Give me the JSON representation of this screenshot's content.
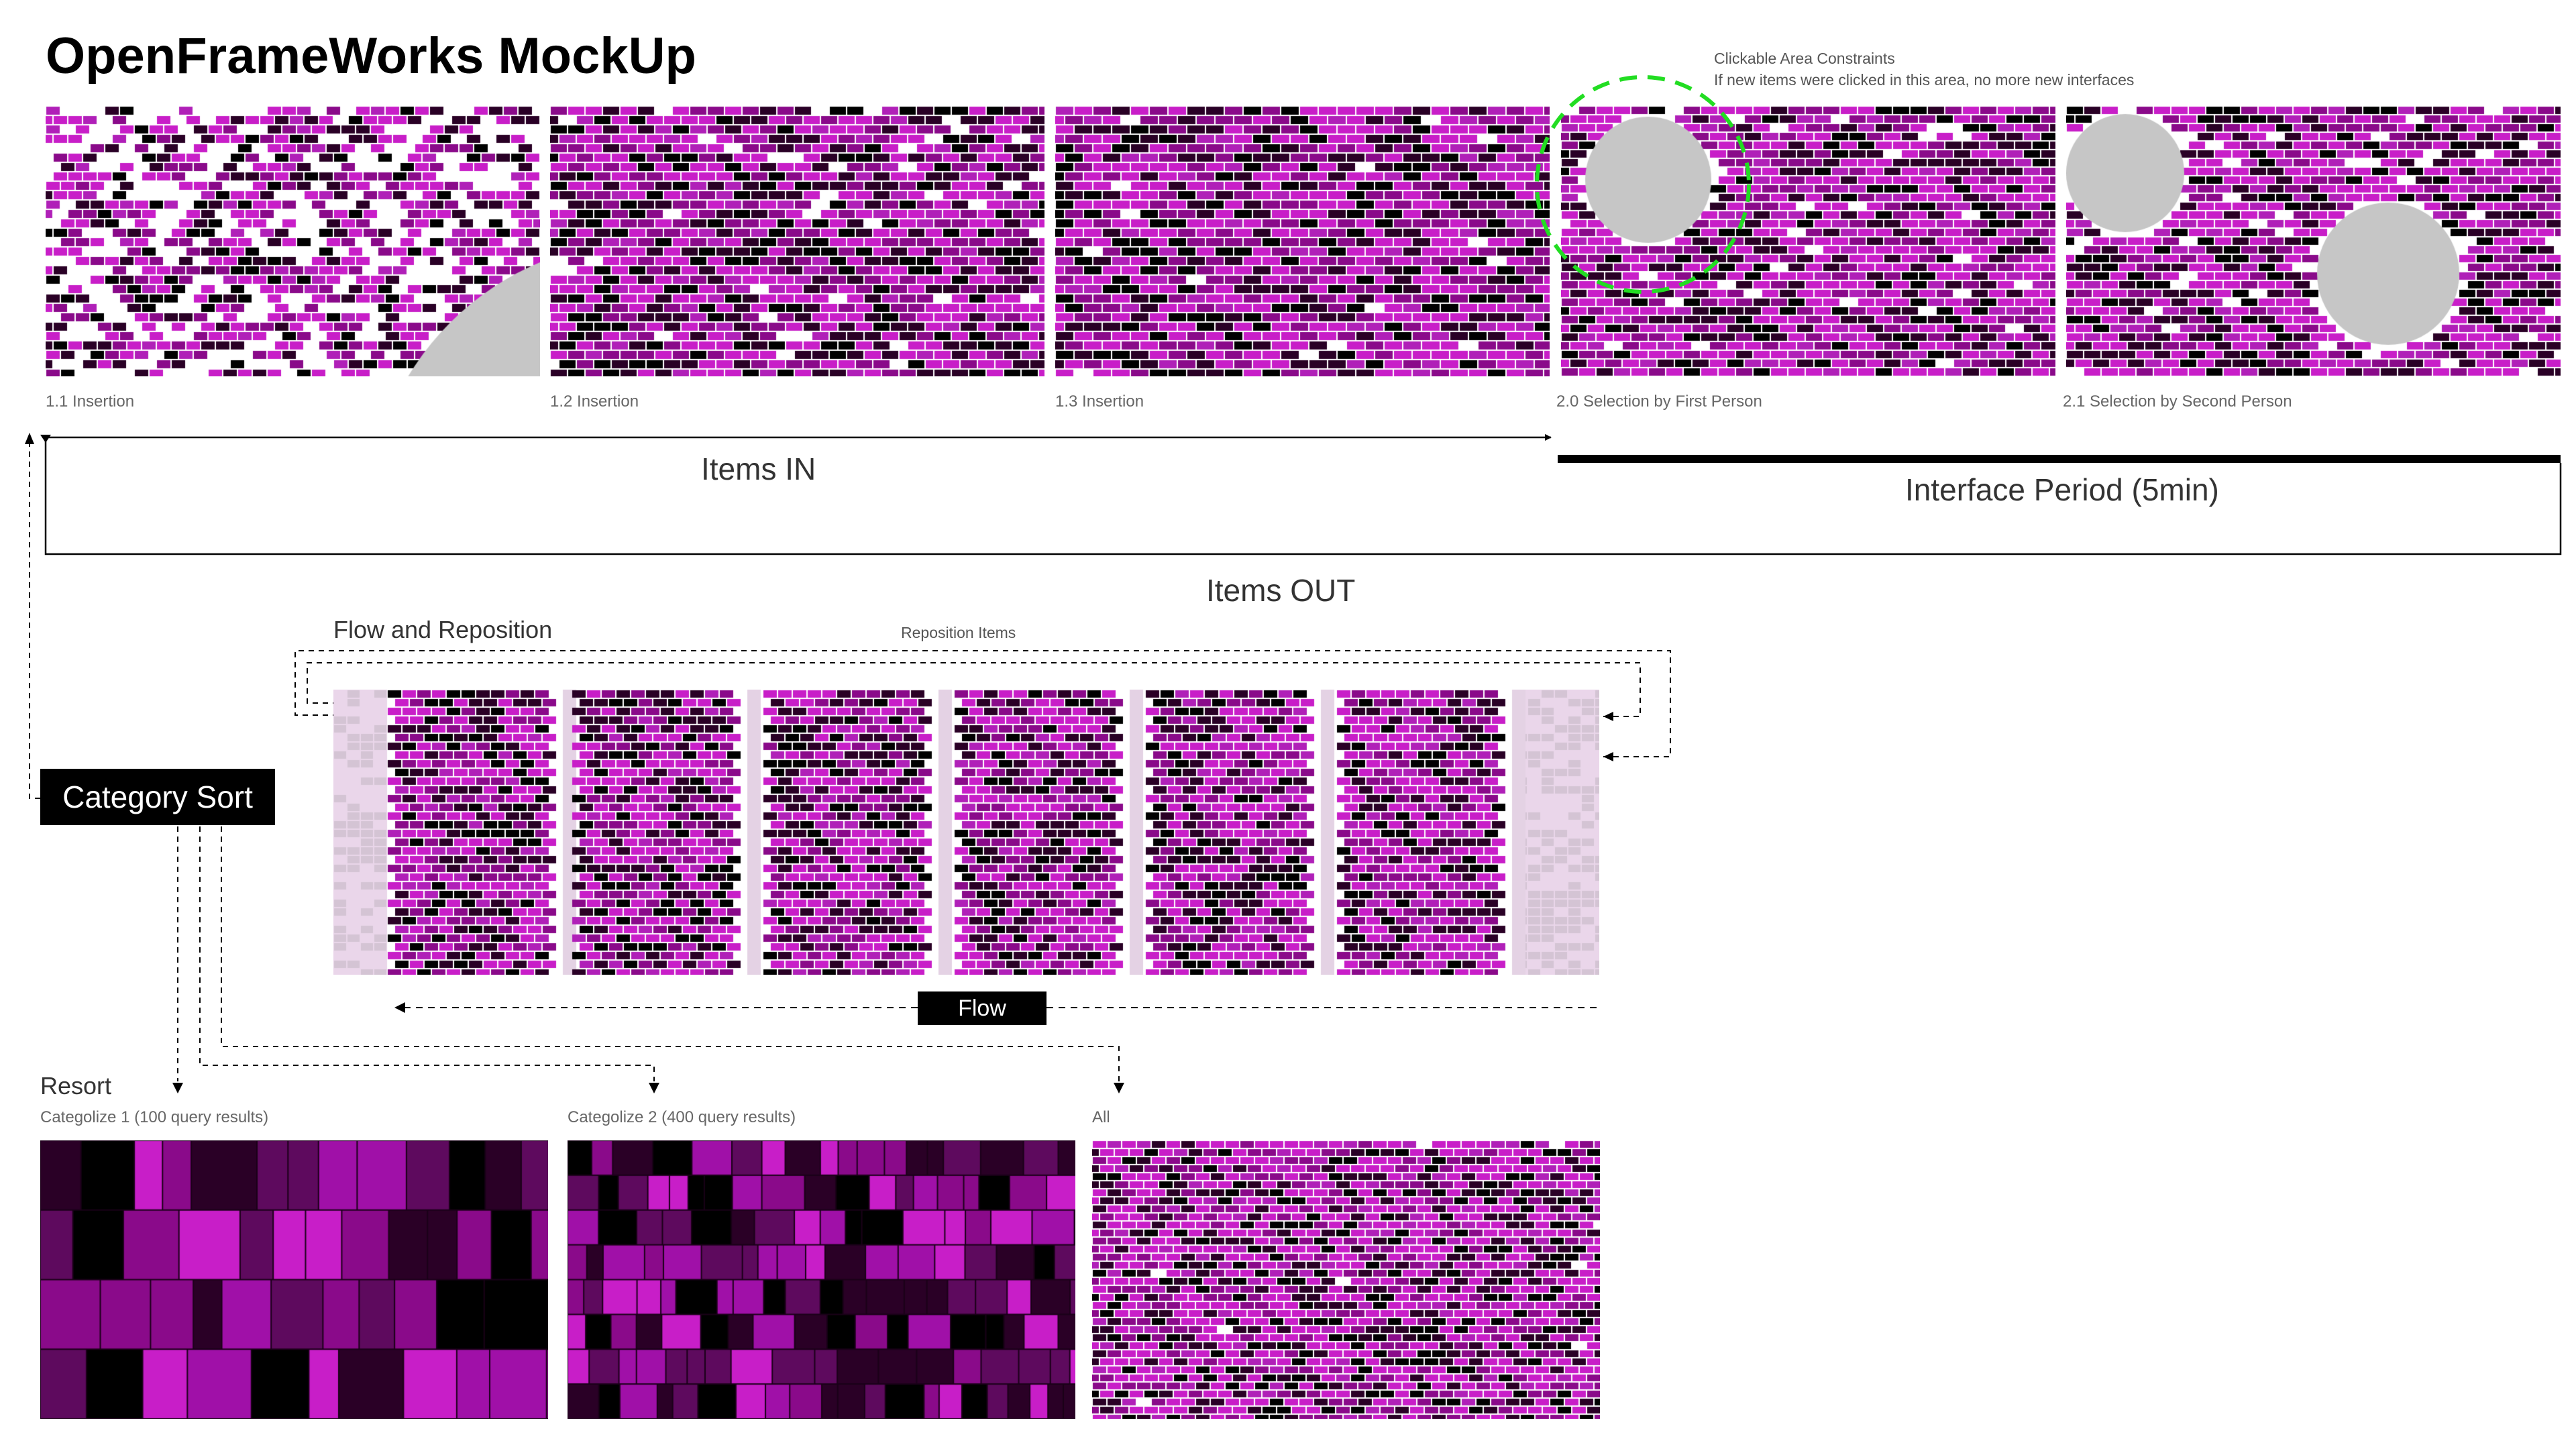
{
  "title": "OpenFrameWorks MockUp",
  "constraint_note": {
    "line1": "Clickable Area Constraints",
    "line2": "If new items were clicked in this area, no more new interfaces"
  },
  "panels": [
    {
      "caption": "1.1 Insertion"
    },
    {
      "caption": "1.2 Insertion"
    },
    {
      "caption": "1.3 Insertion"
    },
    {
      "caption": "2.0 Selection by First Person"
    },
    {
      "caption": "2.1 Selection by Second Person"
    }
  ],
  "labels": {
    "items_in": "Items IN",
    "interface_period": "Interface Period (5min)",
    "items_out": "Items OUT",
    "flow_and_reposition": "Flow and Reposition",
    "reposition_items": "Reposition Items",
    "category_sort": "Category Sort",
    "flow": "Flow",
    "resort": "Resort"
  },
  "resort_panels": [
    {
      "caption": "Categolize 1 (100 query results)"
    },
    {
      "caption": "Categolize 2 (400 query results)"
    },
    {
      "caption": "All"
    }
  ],
  "colors": {
    "magenta": "#c81ec8",
    "violet": "#8a0a8a",
    "dark": "#2a0026",
    "black": "#000000",
    "empty_gray": "#c6c6c6",
    "constraint_green": "#22dd22"
  }
}
